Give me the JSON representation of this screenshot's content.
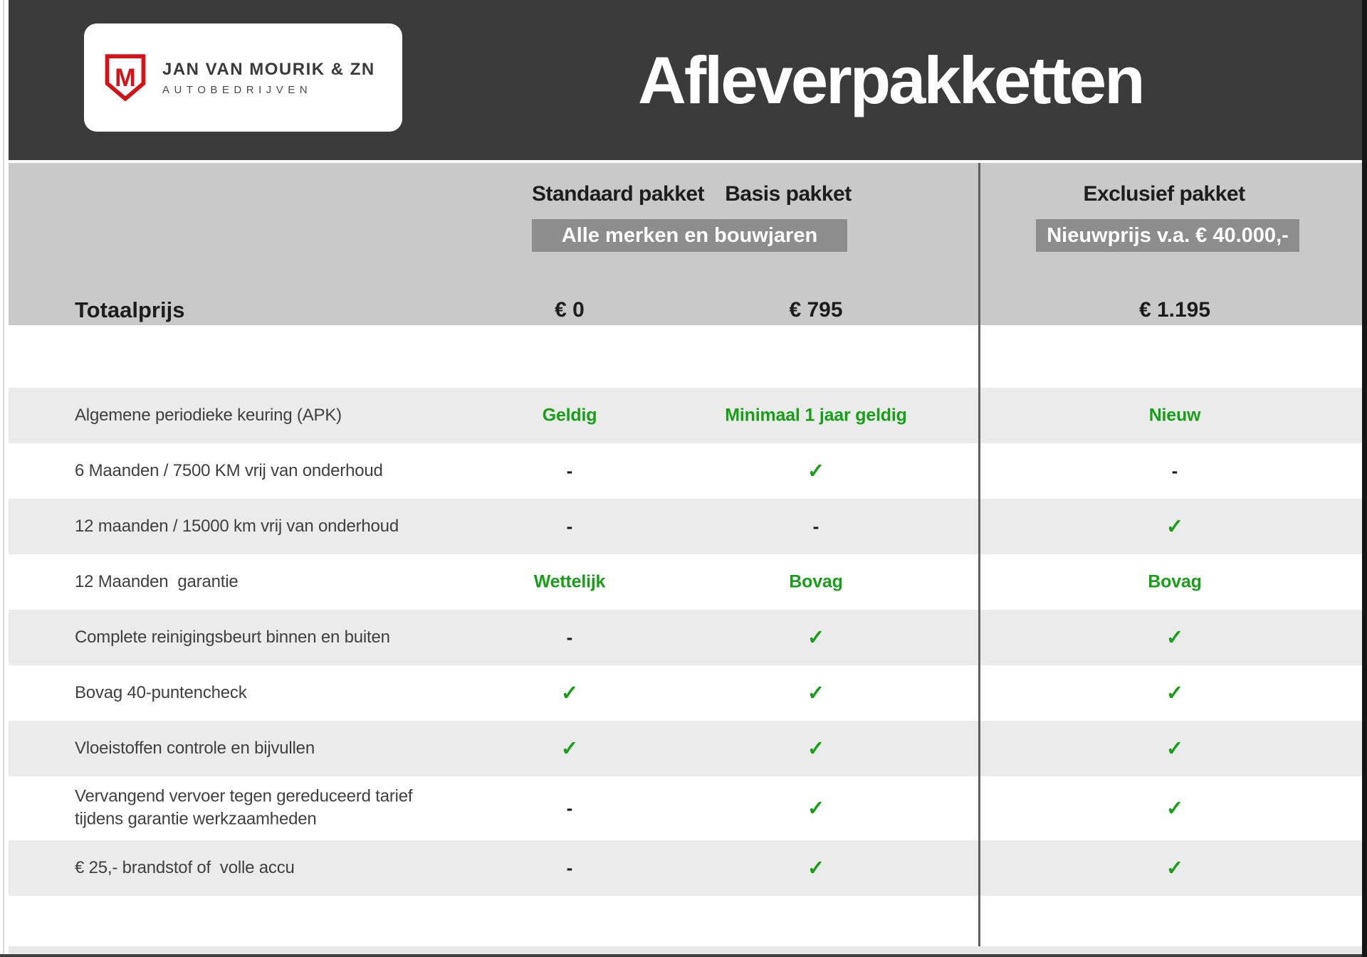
{
  "brand": {
    "name_line1": "JAN VAN MOURIK & ZN",
    "name_line2": "AUTOBEDRIJVEN",
    "logo_monogram": "M"
  },
  "header": {
    "title": "Afleverpakketten"
  },
  "columns": {
    "standaard": "Standaard pakket",
    "basis": "Basis pakket",
    "exclusief": "Exclusief pakket",
    "standaard_basis_badge": "Alle merken en bouwjaren",
    "exclusief_badge": "Nieuwprijs v.a. € 40.000,-"
  },
  "totals": {
    "label": "Totaalprijs",
    "standaard": "€ 0",
    "basis": "€ 795",
    "exclusief": "€ 1.195"
  },
  "table": {
    "rows": [
      {
        "label": "Algemene periodieke keuring (APK)",
        "standaard": "Geldig",
        "basis": "Minimaal 1 jaar geldig",
        "exclusief": "Nieuw"
      },
      {
        "label": "6 Maanden / 7500 KM vrij van onderhoud",
        "standaard": "-",
        "basis": "✓",
        "exclusief": "-"
      },
      {
        "label": "12 maanden / 15000 km vrij van onderhoud",
        "standaard": "-",
        "basis": "-",
        "exclusief": "✓"
      },
      {
        "label": "12 Maanden  garantie",
        "standaard": "Wettelijk",
        "basis": "Bovag",
        "exclusief": "Bovag"
      },
      {
        "label": "Complete reinigingsbeurt binnen en buiten",
        "standaard": "-",
        "basis": "✓",
        "exclusief": "✓"
      },
      {
        "label": "Bovag 40-puntencheck",
        "standaard": "✓",
        "basis": "✓",
        "exclusief": "✓"
      },
      {
        "label": "Vloeistoffen controle en bijvullen",
        "standaard": "✓",
        "basis": "✓",
        "exclusief": "✓"
      },
      {
        "label": "Vervangend vervoer tegen gereduceerd tarief\ntijdens garantie werkzaamheden",
        "standaard": "-",
        "basis": "✓",
        "exclusief": "✓"
      },
      {
        "label": "€ 25,- brandstof of  volle accu",
        "standaard": "-",
        "basis": "✓",
        "exclusief": "✓"
      }
    ]
  },
  "colors": {
    "topbar": "#3b3b3b",
    "header_band": "#c9c9c9",
    "badge": "#8d8d8d",
    "row_shaded": "#ebebeb",
    "green": "#17a017",
    "brand_red": "#d41217"
  }
}
